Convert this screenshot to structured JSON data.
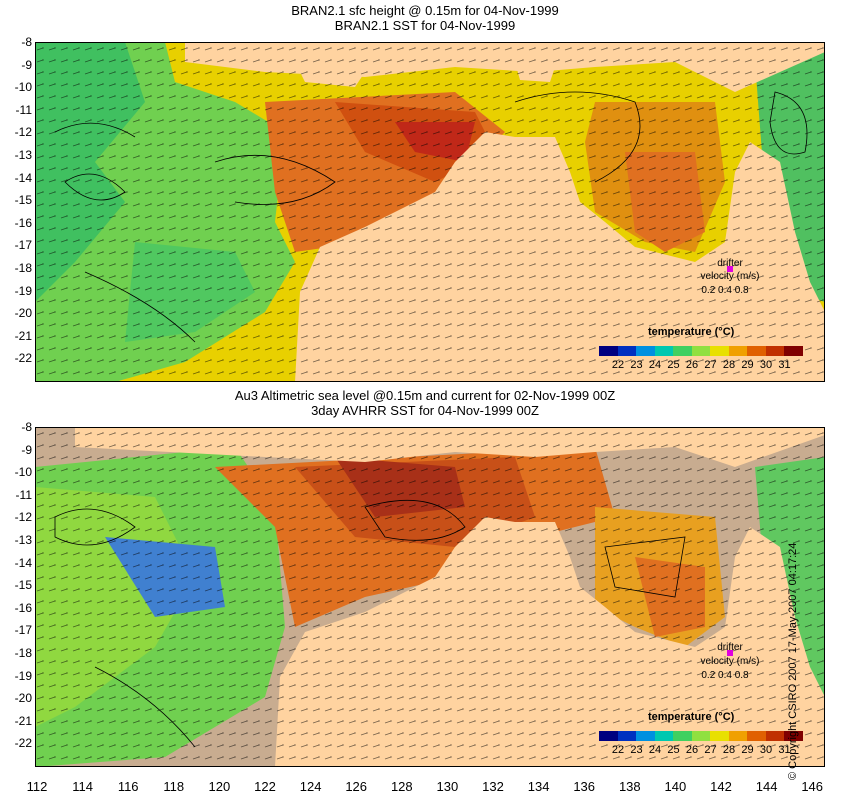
{
  "top_panel": {
    "title_line1": "BRAN2.1 sfc height @ 0.15m for 04-Nov-1999",
    "title_line2": "BRAN2.1 SST for 04-Nov-1999"
  },
  "bottom_panel": {
    "title_line1": "Au3 Altimetric sea level  @0.15m and current for 02-Nov-1999 00Z",
    "title_line2": "3day AVHRR SST for 04-Nov-1999 00Z"
  },
  "latitude_labels": [
    "-8",
    "-9",
    "-10",
    "-11",
    "-12",
    "-13",
    "-14",
    "-15",
    "-16",
    "-17",
    "-18",
    "-19",
    "-20",
    "-21",
    "-22"
  ],
  "longitude_labels": [
    "112",
    "114",
    "116",
    "118",
    "120",
    "122",
    "124",
    "126",
    "128",
    "130",
    "132",
    "134",
    "136",
    "138",
    "140",
    "142",
    "144",
    "146"
  ],
  "colorbar": {
    "title": "temperature  (°C)",
    "labels": [
      "22",
      "23",
      "24",
      "25",
      "26",
      "27",
      "28",
      "29",
      "30",
      "31"
    ],
    "colors": [
      "#000080",
      "#0030c0",
      "#0090e0",
      "#00c8b0",
      "#40d060",
      "#90e040",
      "#e8e000",
      "#f0a000",
      "#e06000",
      "#c03000",
      "#800000"
    ]
  },
  "drifter": {
    "label1": "drifter",
    "label2": "velocity (m/s)",
    "scale": "0.2 0.4 0.8"
  },
  "copyright": "© Copyright CSIRO 2007 17-May-2007 04:17:24",
  "map_colors": {
    "land": "#ffd3a0",
    "no_data": "#c8ac90",
    "sst_cool": "#60d060",
    "sst_mid": "#e8d000",
    "sst_warm": "#e07000",
    "sst_hot": "#c03000"
  }
}
